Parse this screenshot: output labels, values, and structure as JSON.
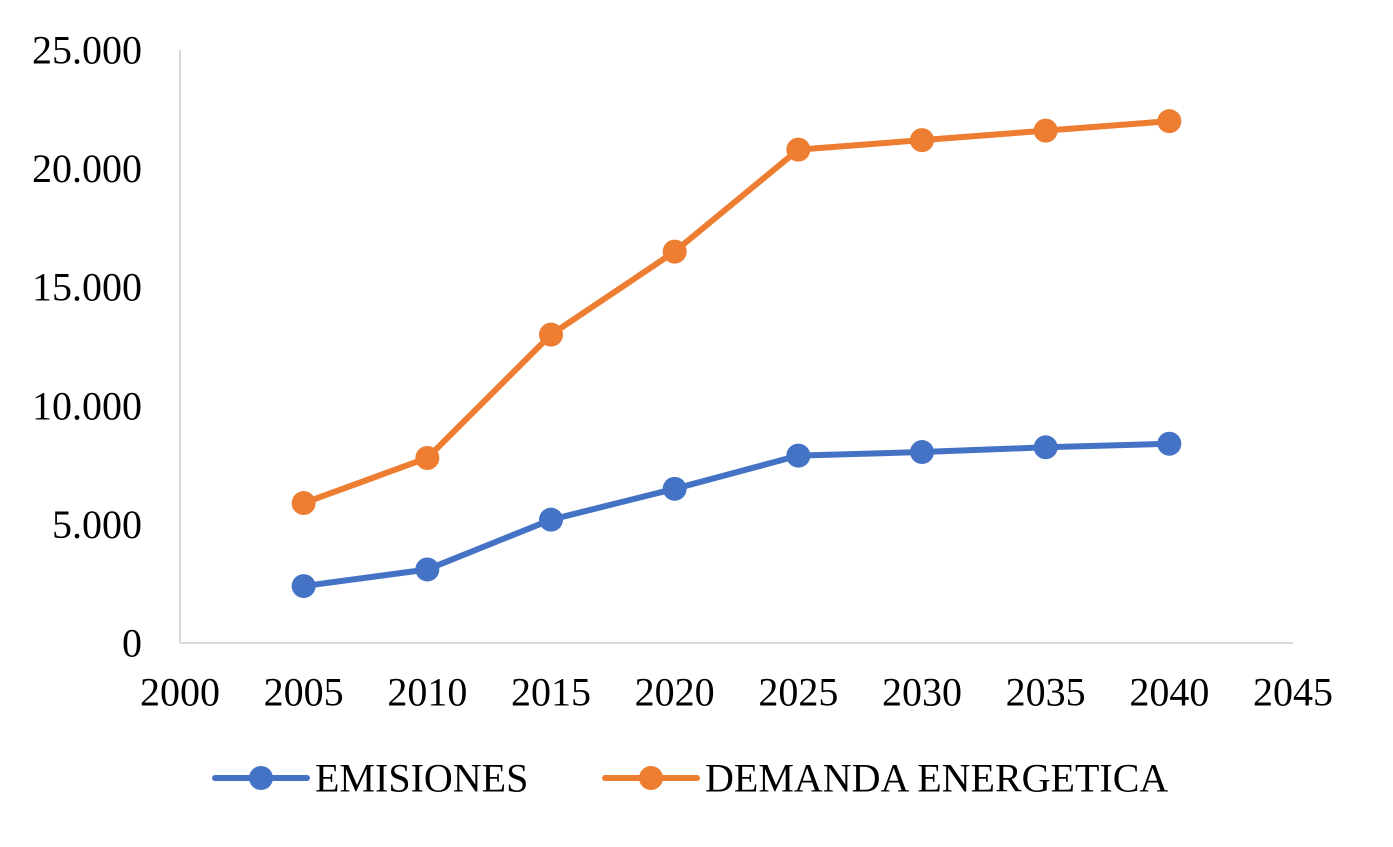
{
  "chart_data": {
    "type": "line",
    "title": "",
    "xlabel": "",
    "ylabel": "",
    "x_ticks": [
      "2000",
      "2005",
      "2010",
      "2015",
      "2020",
      "2025",
      "2030",
      "2035",
      "2040",
      "2045"
    ],
    "x_tick_values": [
      2000,
      2005,
      2010,
      2015,
      2020,
      2025,
      2030,
      2035,
      2040,
      2045
    ],
    "y_ticks": [
      "0",
      "5.000",
      "10.000",
      "15.000",
      "20.000",
      "25.000"
    ],
    "y_tick_values": [
      0,
      5000,
      10000,
      15000,
      20000,
      25000
    ],
    "xlim": [
      2000,
      2045
    ],
    "ylim": [
      0,
      25000
    ],
    "grid": false,
    "legend_position": "bottom",
    "x": [
      2005,
      2010,
      2015,
      2020,
      2025,
      2030,
      2035,
      2040
    ],
    "series": [
      {
        "name": "EMISIONES",
        "color": "#4472C4",
        "values": [
          2400,
          3100,
          5200,
          6500,
          7900,
          8050,
          8250,
          8400
        ]
      },
      {
        "name": "DEMANDA ENERGETICA",
        "color": "#ED7D31",
        "values": [
          5900,
          7800,
          13000,
          16500,
          20800,
          21200,
          21600,
          22000
        ]
      }
    ]
  }
}
